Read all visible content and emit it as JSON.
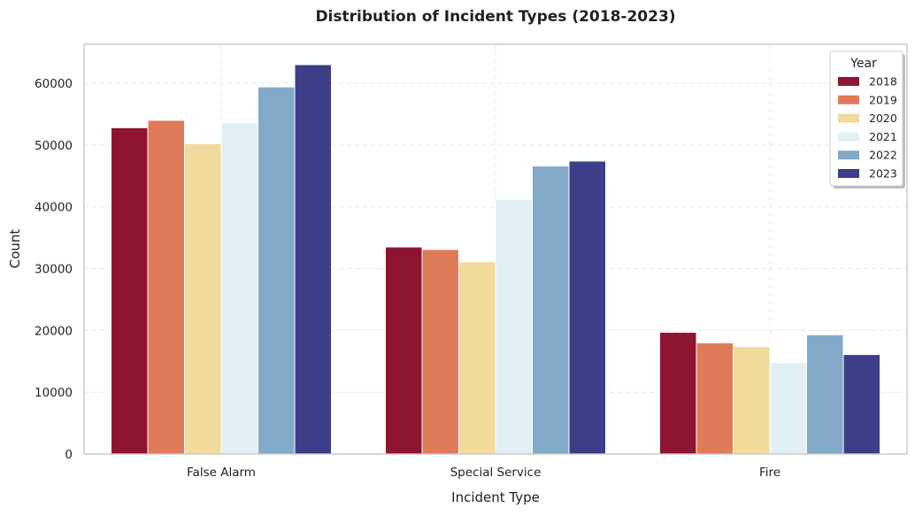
{
  "chart_data": {
    "type": "bar",
    "title": "Distribution of Incident Types (2018-2023)",
    "xlabel": "Incident Type",
    "ylabel": "Count",
    "categories": [
      "False Alarm",
      "Special Service",
      "Fire"
    ],
    "series": [
      {
        "name": "2018",
        "color": "#8e1530",
        "values": [
          52800,
          33500,
          19700
        ]
      },
      {
        "name": "2019",
        "color": "#e07b5a",
        "values": [
          54000,
          33100,
          18000
        ]
      },
      {
        "name": "2020",
        "color": "#f0da9c",
        "values": [
          50200,
          31100,
          17400
        ]
      },
      {
        "name": "2021",
        "color": "#e1f0f4",
        "values": [
          53600,
          41200,
          14800
        ]
      },
      {
        "name": "2022",
        "color": "#82a9c7",
        "values": [
          59400,
          46600,
          19300
        ]
      },
      {
        "name": "2023",
        "color": "#3c3e88",
        "values": [
          63000,
          47400,
          16100
        ]
      }
    ],
    "ylim": [
      0,
      66300
    ],
    "yticks": [
      0,
      10000,
      20000,
      30000,
      40000,
      50000,
      60000
    ],
    "ytick_labels": [
      "0",
      "10000",
      "20000",
      "30000",
      "40000",
      "50000",
      "60000"
    ],
    "grid": true,
    "legend": {
      "title": "Year",
      "placement": "top-right"
    }
  }
}
